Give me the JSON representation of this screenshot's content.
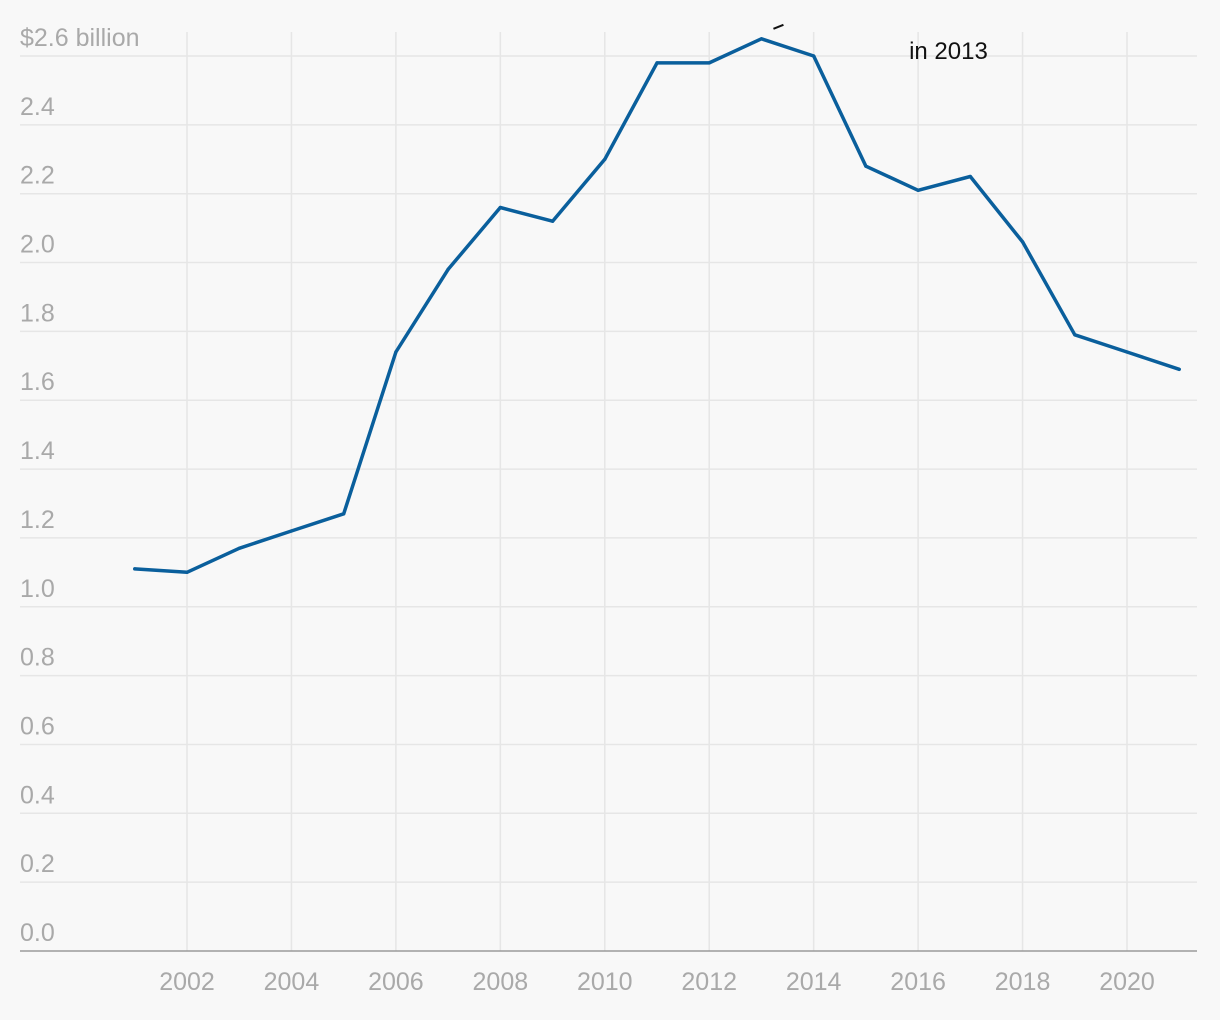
{
  "chart_data": {
    "type": "line",
    "title": "",
    "xlabel": "",
    "ylabel": "",
    "x": [
      2001,
      2002,
      2003,
      2004,
      2005,
      2006,
      2007,
      2008,
      2009,
      2010,
      2011,
      2012,
      2013,
      2014,
      2015,
      2016,
      2017,
      2018,
      2019,
      2020,
      2021
    ],
    "series": [
      {
        "values": [
          1.11,
          1.1,
          1.17,
          1.22,
          1.27,
          1.74,
          1.98,
          2.16,
          2.12,
          2.3,
          2.58,
          2.58,
          2.65,
          2.6,
          2.28,
          2.21,
          2.25,
          2.06,
          1.79,
          1.74,
          1.69
        ],
        "color": "#0a5f9c"
      }
    ],
    "xlim": [
      2000,
      2021.3
    ],
    "ylim": [
      0,
      2.6
    ],
    "yticks": [
      {
        "value": 0.0,
        "label": "0.0"
      },
      {
        "value": 0.2,
        "label": "0.2"
      },
      {
        "value": 0.4,
        "label": "0.4"
      },
      {
        "value": 0.6,
        "label": "0.6"
      },
      {
        "value": 0.8,
        "label": "0.8"
      },
      {
        "value": 1.0,
        "label": "1.0"
      },
      {
        "value": 1.2,
        "label": "1.2"
      },
      {
        "value": 1.4,
        "label": "1.4"
      },
      {
        "value": 1.6,
        "label": "1.6"
      },
      {
        "value": 1.8,
        "label": "1.8"
      },
      {
        "value": 2.0,
        "label": "2.0"
      },
      {
        "value": 2.2,
        "label": "2.2"
      },
      {
        "value": 2.4,
        "label": "2.4"
      },
      {
        "value": 2.6,
        "label": "$2.6 billion"
      }
    ],
    "xticks": [
      {
        "value": 2002,
        "label": "2002"
      },
      {
        "value": 2004,
        "label": "2004"
      },
      {
        "value": 2006,
        "label": "2006"
      },
      {
        "value": 2008,
        "label": "2008"
      },
      {
        "value": 2010,
        "label": "2010"
      },
      {
        "value": 2012,
        "label": "2012"
      },
      {
        "value": 2014,
        "label": "2014"
      },
      {
        "value": 2016,
        "label": "2016"
      },
      {
        "value": 2018,
        "label": "2018"
      },
      {
        "value": 2020,
        "label": "2020"
      }
    ],
    "grid": true,
    "annotations": [
      {
        "text": "in 2013",
        "x": 2013,
        "y": 2.65
      }
    ]
  },
  "colors": {
    "background": "#f8f8f8",
    "grid": "#e6e6e6",
    "tick_text": "#a9a9a9",
    "annotation_text": "#111111"
  }
}
